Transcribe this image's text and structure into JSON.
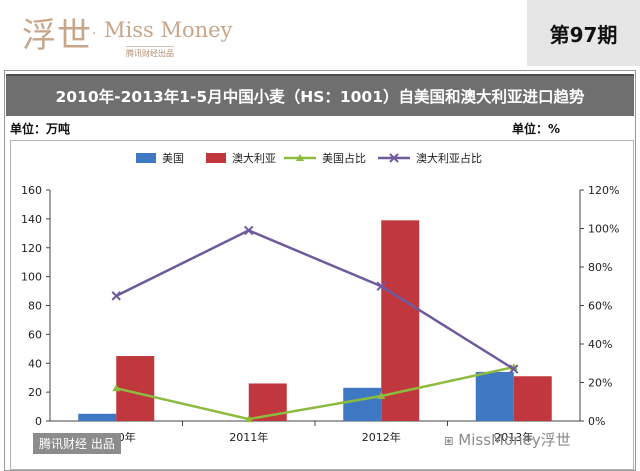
{
  "header": {
    "brand_cn": "浮世",
    "brand_dot": "·",
    "brand_en": "Miss Money",
    "brand_sub": "腾讯财经出品",
    "issue": "第97期"
  },
  "footer": {
    "tag": "腾讯财经 出品",
    "account": "⧆ MissMoney浮世"
  },
  "colors": {
    "usa": "#3f78c2",
    "australia": "#c0383d",
    "usa_share": "#8dbb3f",
    "australia_share": "#6f5a9e",
    "title_bg": "#6f6f6f"
  },
  "chart_data": {
    "type": "bar",
    "title": "2010年-2013年1-5月中国小麦（HS：1001）自美国和澳大利亚进口趋势",
    "unit_left": "单位：万吨",
    "unit_right": "单位：%",
    "categories": [
      "2010年",
      "2011年",
      "2012年",
      "2013年"
    ],
    "series": [
      {
        "name": "美国",
        "type": "bar",
        "axis": "left",
        "values": [
          5,
          0,
          23,
          34
        ]
      },
      {
        "name": "澳大利亚",
        "type": "bar",
        "axis": "left",
        "values": [
          45,
          26,
          139,
          31
        ]
      },
      {
        "name": "美国占比",
        "type": "line",
        "axis": "right",
        "values": [
          17,
          1,
          13,
          28
        ]
      },
      {
        "name": "澳大利亚占比",
        "type": "line",
        "axis": "right",
        "values": [
          65,
          99,
          70,
          27
        ]
      }
    ],
    "y_left": {
      "min": 0,
      "max": 160,
      "ticks": [
        0,
        20,
        40,
        60,
        80,
        100,
        120,
        140,
        160
      ]
    },
    "y_right": {
      "min": 0,
      "max": 120,
      "ticks": [
        "0%",
        "20%",
        "40%",
        "60%",
        "80%",
        "100%",
        "120%"
      ]
    },
    "grid": false,
    "legend_position": "top"
  }
}
